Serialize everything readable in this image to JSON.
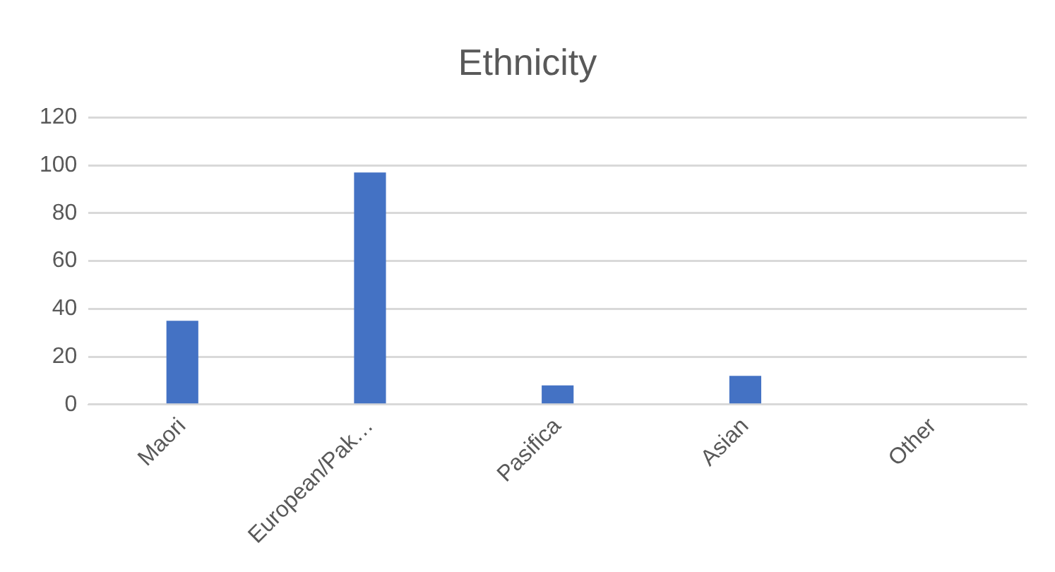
{
  "chart_data": {
    "type": "bar",
    "title": "Ethnicity",
    "categories": [
      "Maori",
      "European/Pak…",
      "Pasifica",
      "Asian",
      "Other"
    ],
    "values": [
      35,
      97,
      8,
      12,
      0
    ],
    "color": "#4472c4",
    "ylim": [
      0,
      120
    ],
    "yticks": [
      0,
      20,
      40,
      60,
      80,
      100,
      120
    ],
    "grid": "y",
    "legend": false
  }
}
